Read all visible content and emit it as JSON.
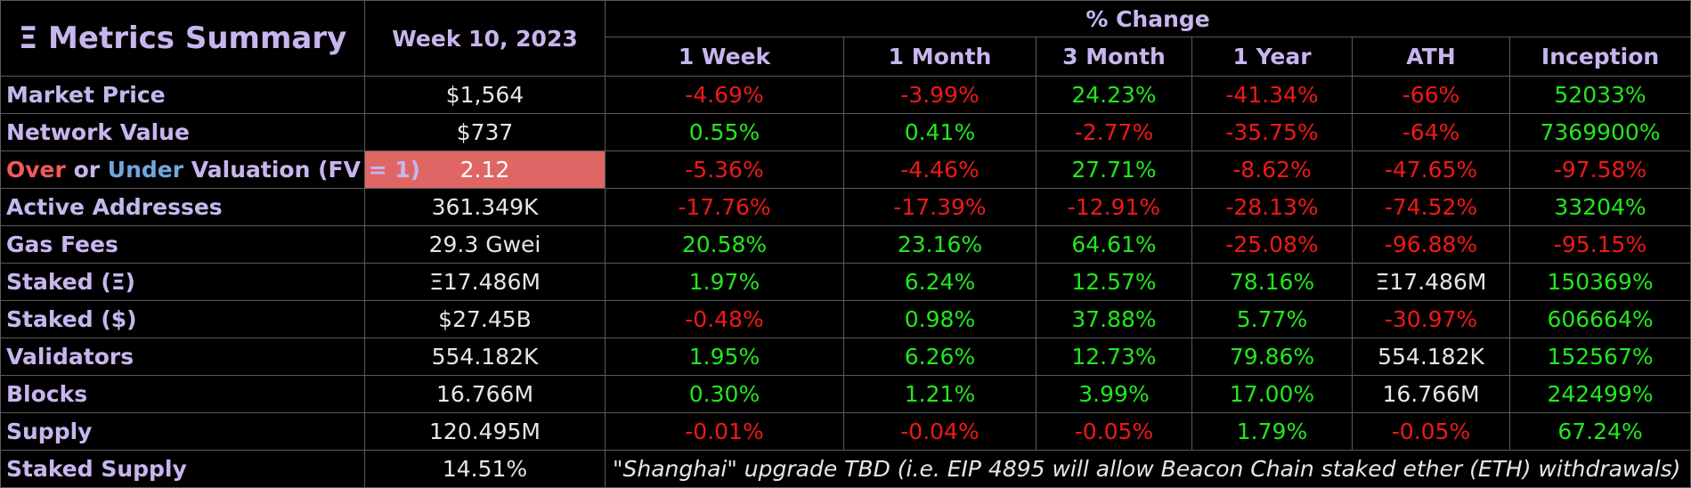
{
  "header": {
    "eth_symbol": "Ξ",
    "title": "Metrics Summary",
    "week": "Week 10, 2023",
    "pct_change": "% Change",
    "columns": [
      "1 Week",
      "1 Month",
      "3 Month",
      "1 Year",
      "ATH",
      "Inception"
    ]
  },
  "rows": [
    {
      "label": "Market Price",
      "value": "$1,564",
      "changes": [
        {
          "text": "-4.69%",
          "tone": "neg"
        },
        {
          "text": "-3.99%",
          "tone": "neg"
        },
        {
          "text": "24.23%",
          "tone": "pos"
        },
        {
          "text": "-41.34%",
          "tone": "neg"
        },
        {
          "text": "-66%",
          "tone": "neg"
        },
        {
          "text": "52033%",
          "tone": "pos"
        }
      ]
    },
    {
      "label": "Network Value",
      "value": "$737",
      "changes": [
        {
          "text": "0.55%",
          "tone": "pos"
        },
        {
          "text": "0.41%",
          "tone": "pos"
        },
        {
          "text": "-2.77%",
          "tone": "neg"
        },
        {
          "text": "-35.75%",
          "tone": "neg"
        },
        {
          "text": "-64%",
          "tone": "neg"
        },
        {
          "text": "7369900%",
          "tone": "pos"
        }
      ]
    },
    {
      "label_parts": {
        "over": "Over",
        "or": "or",
        "under": "Under",
        "rest": "Valuation (FV = 1)"
      },
      "value": "2.12",
      "highlight_color": "#e06666",
      "changes": [
        {
          "text": "-5.36%",
          "tone": "neg"
        },
        {
          "text": "-4.46%",
          "tone": "neg"
        },
        {
          "text": "27.71%",
          "tone": "pos"
        },
        {
          "text": "-8.62%",
          "tone": "neg"
        },
        {
          "text": "-47.65%",
          "tone": "neg"
        },
        {
          "text": "-97.58%",
          "tone": "neg"
        }
      ]
    },
    {
      "label": "Active Addresses",
      "value": "361.349K",
      "changes": [
        {
          "text": "-17.76%",
          "tone": "neg"
        },
        {
          "text": "-17.39%",
          "tone": "neg"
        },
        {
          "text": "-12.91%",
          "tone": "neg"
        },
        {
          "text": "-28.13%",
          "tone": "neg"
        },
        {
          "text": "-74.52%",
          "tone": "neg"
        },
        {
          "text": "33204%",
          "tone": "pos"
        }
      ]
    },
    {
      "label": "Gas Fees",
      "value": "29.3 Gwei",
      "changes": [
        {
          "text": "20.58%",
          "tone": "pos"
        },
        {
          "text": "23.16%",
          "tone": "pos"
        },
        {
          "text": "64.61%",
          "tone": "pos"
        },
        {
          "text": "-25.08%",
          "tone": "neg"
        },
        {
          "text": "-96.88%",
          "tone": "neg"
        },
        {
          "text": "-95.15%",
          "tone": "neg"
        }
      ]
    },
    {
      "label": "Staked (Ξ)",
      "value": "Ξ17.486M",
      "changes": [
        {
          "text": "1.97%",
          "tone": "pos"
        },
        {
          "text": "6.24%",
          "tone": "pos"
        },
        {
          "text": "12.57%",
          "tone": "pos"
        },
        {
          "text": "78.16%",
          "tone": "pos"
        },
        {
          "text": "Ξ17.486M",
          "tone": "neu"
        },
        {
          "text": "150369%",
          "tone": "pos"
        }
      ]
    },
    {
      "label": "Staked ($)",
      "value": "$27.45B",
      "changes": [
        {
          "text": "-0.48%",
          "tone": "neg"
        },
        {
          "text": "0.98%",
          "tone": "pos"
        },
        {
          "text": "37.88%",
          "tone": "pos"
        },
        {
          "text": "5.77%",
          "tone": "pos"
        },
        {
          "text": "-30.97%",
          "tone": "neg"
        },
        {
          "text": "606664%",
          "tone": "pos"
        }
      ]
    },
    {
      "label": "Validators",
      "value": "554.182K",
      "changes": [
        {
          "text": "1.95%",
          "tone": "pos"
        },
        {
          "text": "6.26%",
          "tone": "pos"
        },
        {
          "text": "12.73%",
          "tone": "pos"
        },
        {
          "text": "79.86%",
          "tone": "pos"
        },
        {
          "text": "554.182K",
          "tone": "neu"
        },
        {
          "text": "152567%",
          "tone": "pos"
        }
      ]
    },
    {
      "label": "Blocks",
      "value": "16.766M",
      "changes": [
        {
          "text": "0.30%",
          "tone": "pos"
        },
        {
          "text": "1.21%",
          "tone": "pos"
        },
        {
          "text": "3.99%",
          "tone": "pos"
        },
        {
          "text": "17.00%",
          "tone": "pos"
        },
        {
          "text": "16.766M",
          "tone": "neu"
        },
        {
          "text": "242499%",
          "tone": "pos"
        }
      ]
    },
    {
      "label": "Supply",
      "value": "120.495M",
      "changes": [
        {
          "text": "-0.01%",
          "tone": "neg"
        },
        {
          "text": "-0.04%",
          "tone": "neg"
        },
        {
          "text": "-0.05%",
          "tone": "neg"
        },
        {
          "text": "1.79%",
          "tone": "pos"
        },
        {
          "text": "-0.05%",
          "tone": "neg"
        },
        {
          "text": "67.24%",
          "tone": "pos"
        }
      ]
    }
  ],
  "last_row": {
    "label": "Staked Supply",
    "value": "14.51%",
    "note": "\"Shanghai\" upgrade TBD (i.e. EIP 4895 will allow Beacon Chain staked ether (ETH) withdrawals)"
  },
  "colors": {
    "header_text": "#c7b6ee",
    "positive": "#22e81c",
    "negative": "#f01818",
    "over": "#f05a5a",
    "under": "#6fa8dc"
  }
}
